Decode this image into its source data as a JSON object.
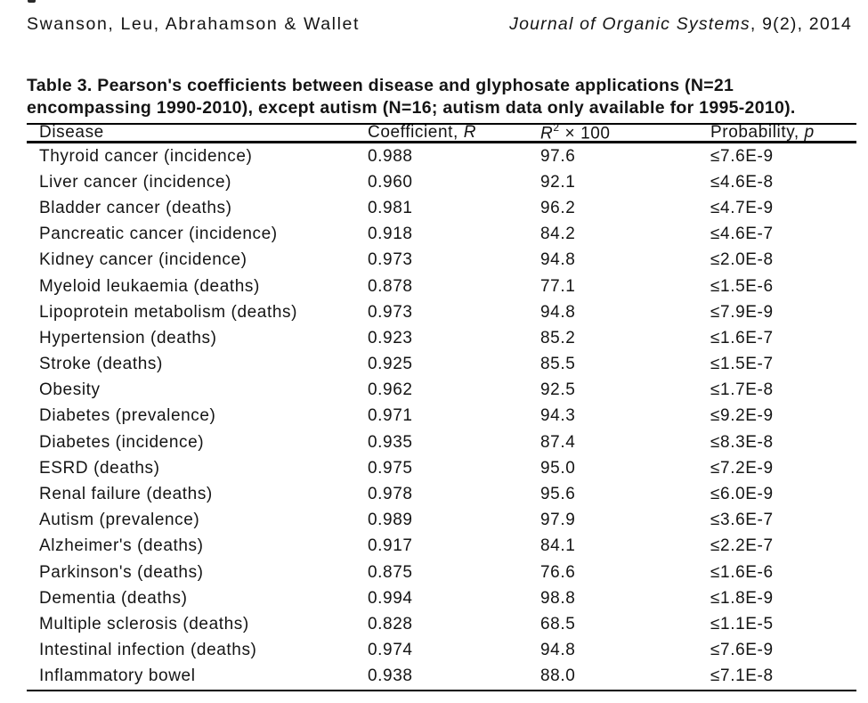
{
  "page_header": {
    "authors": "Swanson, Leu, Abrahamson & Wallet",
    "journal_title": "Journal of Organic Systems",
    "journal_issue": ", 9(2), 2014"
  },
  "table_title": {
    "line1": "Table 3. Pearson's coefficients between disease and glyphosate applications (N=21",
    "line2": "encompassing 1990-2010), except autism (N=16; autism data only available for 1995-2010)."
  },
  "table": {
    "headers": {
      "disease": "Disease",
      "coefficient_prefix": "Coefficient, ",
      "coefficient_symbol": "R",
      "r2_symbol": "R",
      "r2_sup": "2",
      "r2_suffix": " × 100",
      "probability_prefix": "Probability, ",
      "probability_symbol": "p"
    },
    "rows": [
      {
        "disease": "Thyroid cancer (incidence)",
        "coefficient": "0.988",
        "r2": "97.6",
        "probability": "≤7.6E-9"
      },
      {
        "disease": "Liver cancer (incidence)",
        "coefficient": "0.960",
        "r2": "92.1",
        "probability": "≤4.6E-8"
      },
      {
        "disease": "Bladder cancer (deaths)",
        "coefficient": "0.981",
        "r2": "96.2",
        "probability": "≤4.7E-9"
      },
      {
        "disease": "Pancreatic cancer (incidence)",
        "coefficient": "0.918",
        "r2": "84.2",
        "probability": "≤4.6E-7"
      },
      {
        "disease": "Kidney cancer (incidence)",
        "coefficient": "0.973",
        "r2": "94.8",
        "probability": "≤2.0E-8"
      },
      {
        "disease": "Myeloid leukaemia (deaths)",
        "coefficient": "0.878",
        "r2": "77.1",
        "probability": "≤1.5E-6"
      },
      {
        "disease": "Lipoprotein metabolism (deaths)",
        "coefficient": "0.973",
        "r2": "94.8",
        "probability": "≤7.9E-9"
      },
      {
        "disease": "Hypertension (deaths)",
        "coefficient": "0.923",
        "r2": "85.2",
        "probability": "≤1.6E-7"
      },
      {
        "disease": "Stroke (deaths)",
        "coefficient": "0.925",
        "r2": "85.5",
        "probability": "≤1.5E-7"
      },
      {
        "disease": "Obesity",
        "coefficient": "0.962",
        "r2": "92.5",
        "probability": "≤1.7E-8"
      },
      {
        "disease": "Diabetes (prevalence)",
        "coefficient": "0.971",
        "r2": "94.3",
        "probability": "≤9.2E-9"
      },
      {
        "disease": "Diabetes (incidence)",
        "coefficient": "0.935",
        "r2": "87.4",
        "probability": "≤8.3E-8"
      },
      {
        "disease": "ESRD (deaths)",
        "coefficient": "0.975",
        "r2": "95.0",
        "probability": "≤7.2E-9"
      },
      {
        "disease": "Renal failure (deaths)",
        "coefficient": "0.978",
        "r2": "95.6",
        "probability": "≤6.0E-9"
      },
      {
        "disease": "Autism (prevalence)",
        "coefficient": "0.989",
        "r2": "97.9",
        "probability": "≤3.6E-7"
      },
      {
        "disease": "Alzheimer's (deaths)",
        "coefficient": "0.917",
        "r2": "84.1",
        "probability": "≤2.2E-7"
      },
      {
        "disease": "Parkinson's (deaths)",
        "coefficient": "0.875",
        "r2": "76.6",
        "probability": "≤1.6E-6"
      },
      {
        "disease": "Dementia (deaths)",
        "coefficient": "0.994",
        "r2": "98.8",
        "probability": "≤1.8E-9"
      },
      {
        "disease": "Multiple sclerosis (deaths)",
        "coefficient": "0.828",
        "r2": "68.5",
        "probability": "≤1.1E-5"
      },
      {
        "disease": "Intestinal infection (deaths)",
        "coefficient": "0.974",
        "r2": "94.8",
        "probability": "≤7.6E-9"
      },
      {
        "disease": "Inflammatory bowel",
        "coefficient": "0.938",
        "r2": "88.0",
        "probability": "≤7.1E-8"
      }
    ]
  }
}
